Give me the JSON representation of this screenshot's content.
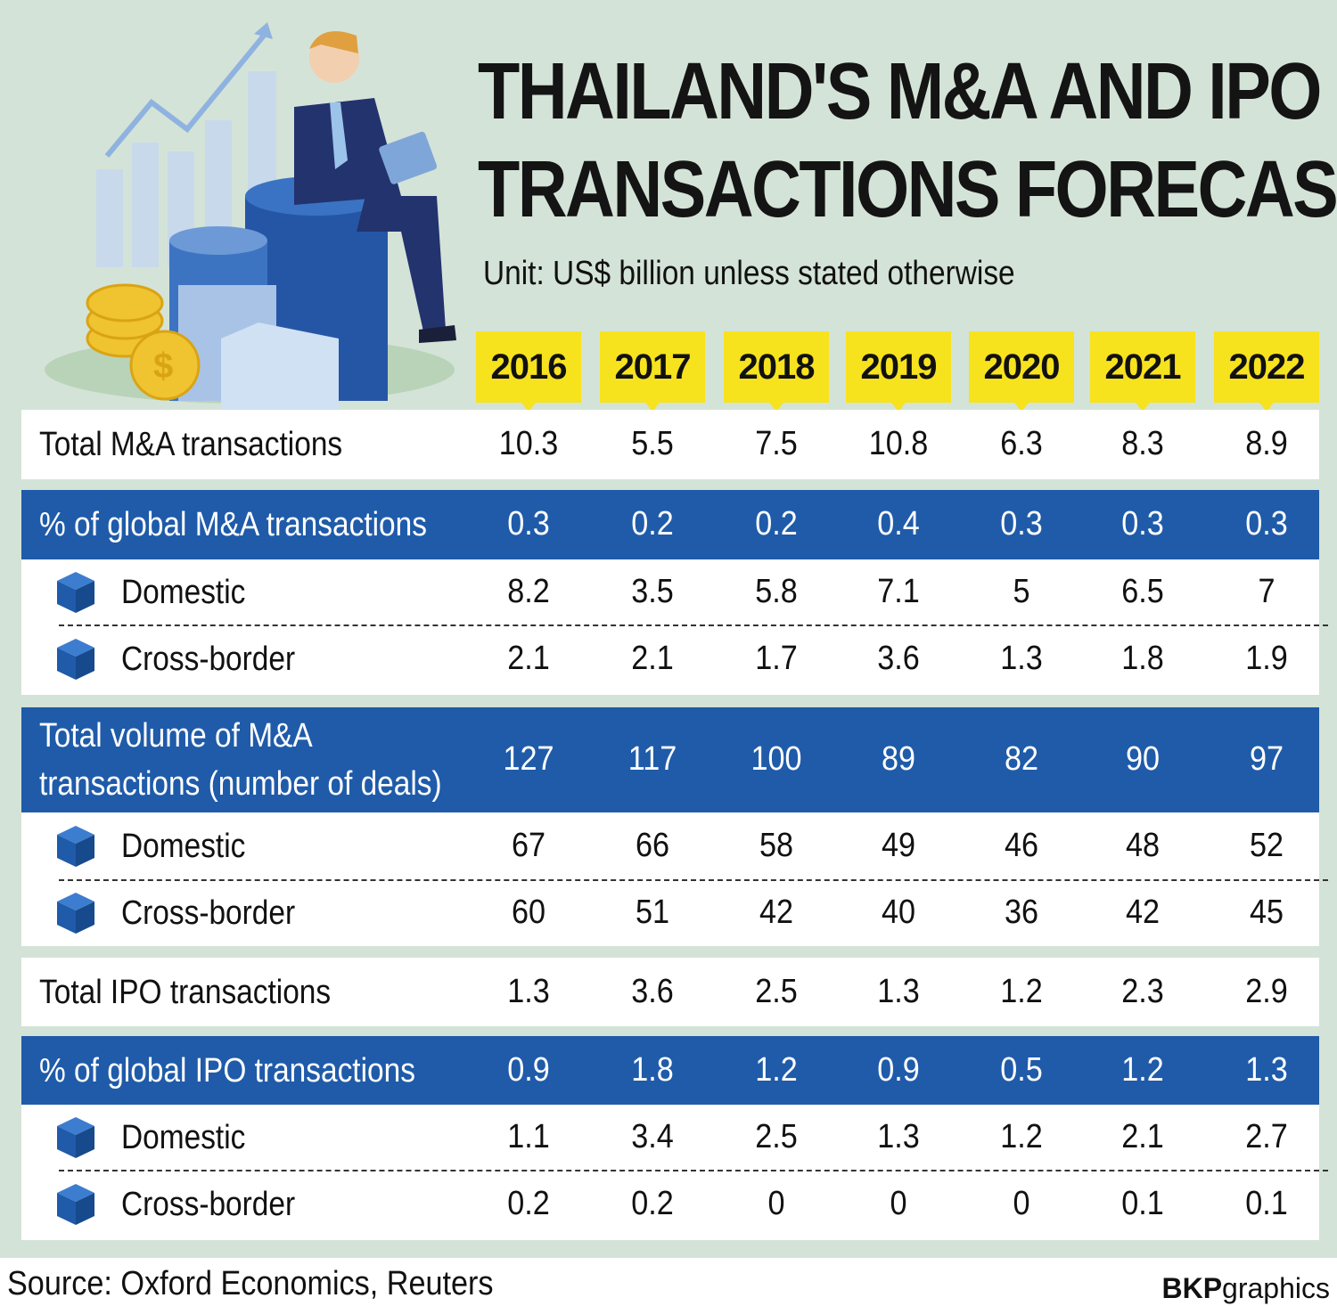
{
  "title_line1": "THAILAND'S M&A AND IPO",
  "title_line2": "TRANSACTIONS FORECAST",
  "subtitle": "Unit: US$ billion unless stated otherwise",
  "source": "Source: Oxford Economics, Reuters",
  "logo_bold": "BKP",
  "logo_light": "graphics",
  "colors": {
    "background": "#d4e3d7",
    "header_blue": "#1f5ba9",
    "year_yellow": "#f7e21e",
    "cube": "#1f5ba9"
  },
  "chart_data": {
    "type": "table",
    "title": "THAILAND'S M&A AND IPO TRANSACTIONS FORECAST",
    "columns": [
      "2016",
      "2017",
      "2018",
      "2019",
      "2020",
      "2021",
      "2022"
    ],
    "rows": [
      {
        "label": "Total M&A transactions",
        "style": "white",
        "values": [
          "10.3",
          "5.5",
          "7.5",
          "10.8",
          "6.3",
          "8.3",
          "8.9"
        ]
      },
      {
        "label": "% of global M&A transactions",
        "style": "blue",
        "values": [
          "0.3",
          "0.2",
          "0.2",
          "0.4",
          "0.3",
          "0.3",
          "0.3"
        ]
      },
      {
        "label": "Domestic",
        "style": "sub",
        "values": [
          "8.2",
          "3.5",
          "5.8",
          "7.1",
          "5",
          "6.5",
          "7"
        ]
      },
      {
        "label": "Cross-border",
        "style": "sub",
        "values": [
          "2.1",
          "2.1",
          "1.7",
          "3.6",
          "1.3",
          "1.8",
          "1.9"
        ]
      },
      {
        "label": "Total volume of M&A",
        "label2": "transactions (number of deals)",
        "style": "blue",
        "values": [
          "127",
          "117",
          "100",
          "89",
          "82",
          "90",
          "97"
        ]
      },
      {
        "label": "Domestic",
        "style": "sub",
        "values": [
          "67",
          "66",
          "58",
          "49",
          "46",
          "48",
          "52"
        ]
      },
      {
        "label": "Cross-border",
        "style": "sub",
        "values": [
          "60",
          "51",
          "42",
          "40",
          "36",
          "42",
          "45"
        ]
      },
      {
        "label": "Total IPO transactions",
        "style": "white",
        "values": [
          "1.3",
          "3.6",
          "2.5",
          "1.3",
          "1.2",
          "2.3",
          "2.9"
        ]
      },
      {
        "label": "% of global IPO transactions",
        "style": "blue",
        "values": [
          "0.9",
          "1.8",
          "1.2",
          "0.9",
          "0.5",
          "1.2",
          "1.3"
        ]
      },
      {
        "label": "Domestic",
        "style": "sub",
        "values": [
          "1.1",
          "3.4",
          "2.5",
          "1.3",
          "1.2",
          "2.1",
          "2.7"
        ]
      },
      {
        "label": "Cross-border",
        "style": "sub",
        "values": [
          "0.2",
          "0.2",
          "0",
          "0",
          "0",
          "0.1",
          "0.1"
        ]
      }
    ]
  }
}
